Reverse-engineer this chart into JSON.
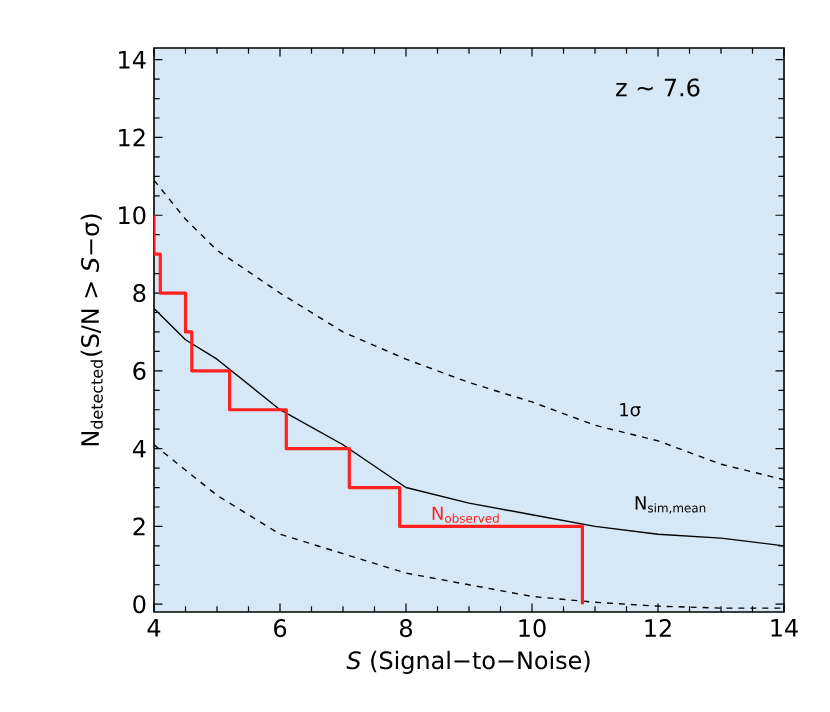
{
  "chart_data": {
    "type": "line",
    "xlabel": "*S* (Signal−to−Noise)",
    "ylabel": "N$_{detected}$(S/N > *S*−σ)",
    "annotations": [
      "z ∼ 7.6"
    ],
    "xlim": [
      4,
      14
    ],
    "ylim": [
      -0.2,
      14.3
    ],
    "xticks": [
      4,
      6,
      8,
      10,
      12,
      14
    ],
    "yticks": [
      0,
      2,
      4,
      6,
      8,
      10,
      12,
      14
    ],
    "series": [
      {
        "name": "1σ",
        "line_style": "dashed",
        "color": "#000000",
        "x": [
          4,
          4.5,
          5,
          6,
          7,
          8,
          9,
          10,
          11,
          12,
          13,
          14
        ],
        "values": [
          10.9,
          9.9,
          9.1,
          8.0,
          7.0,
          6.3,
          5.7,
          5.2,
          4.6,
          4.2,
          3.6,
          3.2
        ]
      },
      {
        "line_style": "dashed",
        "color": "#000000",
        "x": [
          4,
          5,
          6,
          7,
          8,
          9,
          10,
          11,
          12,
          13,
          14
        ],
        "values": [
          4.1,
          2.8,
          1.8,
          1.3,
          0.8,
          0.5,
          0.2,
          0.05,
          -0.05,
          -0.1,
          -0.1
        ]
      },
      {
        "name": "N$_{sim,mean}$",
        "line_style": "solid",
        "color": "#000000",
        "x": [
          4,
          4.5,
          5,
          6,
          7,
          8,
          9,
          10,
          11,
          12,
          13,
          14
        ],
        "values": [
          7.6,
          6.8,
          6.3,
          5.0,
          4.1,
          3.0,
          2.6,
          2.3,
          2.0,
          1.8,
          1.7,
          1.5
        ]
      },
      {
        "name": "N$_{observed}$",
        "type": "step",
        "color": "#ff2020",
        "x": [
          4.0,
          4.1,
          4.5,
          4.6,
          5.2,
          6.1,
          7.1,
          7.9,
          10.8,
          10.8
        ],
        "values": [
          10,
          9,
          8,
          7,
          6,
          5,
          4,
          3,
          2,
          0
        ]
      }
    ]
  }
}
